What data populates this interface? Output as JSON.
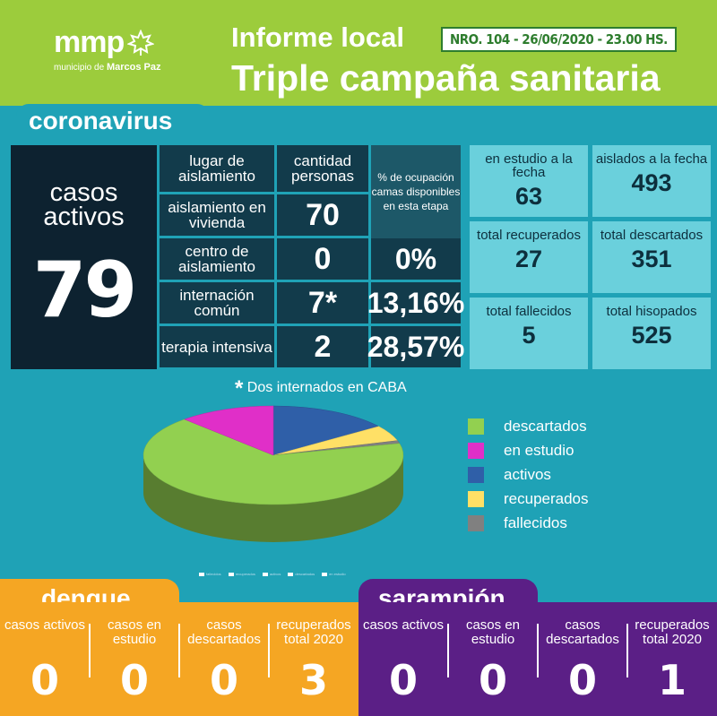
{
  "header": {
    "logo_text": "mmp",
    "logo_sub_prefix": "municipio de",
    "logo_sub_name": "Marcos Paz",
    "title_line1": "Informe local",
    "report_info": "NRO. 104 - 26/06/2020 - 23.00 HS.",
    "title_line2": "Triple campaña sanitaria"
  },
  "coronavirus": {
    "section_title": "coronavirus",
    "active_label_1": "casos",
    "active_label_2": "activos",
    "active_value": "79",
    "table": {
      "headers": [
        "lugar de aislamiento",
        "cantidad personas",
        "% de ocupación camas disponibles en esta etapa"
      ],
      "rows": [
        {
          "place": "aislamiento en vivienda",
          "count": "70",
          "pct": ""
        },
        {
          "place": "centro de aislamiento",
          "count": "0",
          "pct": "0%"
        },
        {
          "place": "internación común",
          "count": "7*",
          "pct": "13,16%"
        },
        {
          "place": "terapia intensiva",
          "count": "2",
          "pct": "28,57%"
        }
      ]
    },
    "stats": [
      {
        "label": "en estudio a la fecha",
        "value": "63"
      },
      {
        "label": "aislados a la fecha",
        "value": "493"
      },
      {
        "label": "total recuperados",
        "value": "27"
      },
      {
        "label": "total descartados",
        "value": "351"
      },
      {
        "label": "total fallecidos",
        "value": "5"
      },
      {
        "label": "total hisopados",
        "value": "525"
      }
    ],
    "footnote": "Dos internados en CABA",
    "footnote_star": "*"
  },
  "chart_data": {
    "type": "pie",
    "categories": [
      "descartados",
      "en estudio",
      "activos",
      "recuperados",
      "fallecidos"
    ],
    "values": [
      351,
      63,
      79,
      27,
      5
    ],
    "colors": [
      "#92d050",
      "#e02fc8",
      "#2f5fa8",
      "#ffe066",
      "#808080"
    ],
    "legend_position": "right",
    "mini_legend": [
      "fallecidos",
      "recuperados",
      "activos",
      "descartados",
      "en estudio"
    ]
  },
  "dengue": {
    "title": "dengue",
    "columns": [
      {
        "label": "casos activos",
        "value": "0"
      },
      {
        "label": "casos en estudio",
        "value": "0"
      },
      {
        "label": "casos descartados",
        "value": "0"
      },
      {
        "label": "recuperados total 2020",
        "value": "3"
      }
    ]
  },
  "sarampion": {
    "title": "sarampión",
    "columns": [
      {
        "label": "casos activos",
        "value": "0"
      },
      {
        "label": "casos en estudio",
        "value": "0"
      },
      {
        "label": "casos descartados",
        "value": "0"
      },
      {
        "label": "recuperados total 2020",
        "value": "1"
      }
    ]
  }
}
